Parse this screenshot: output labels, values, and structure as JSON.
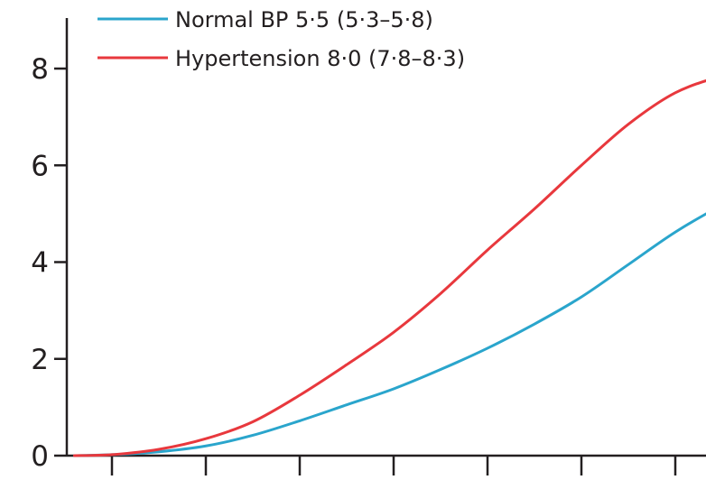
{
  "chart_data": {
    "type": "line",
    "title": "",
    "xlabel": "",
    "ylabel": "",
    "ylim": [
      0,
      9
    ],
    "xlim": [
      0,
      7
    ],
    "y_ticks": [
      0,
      2,
      4,
      6,
      8
    ],
    "y_tick_labels": [
      "0",
      "2",
      "4",
      "6",
      "8"
    ],
    "x_tick_count": 7,
    "grid": false,
    "legend_position": "top-left",
    "series": [
      {
        "name": "Normal BP 5·5 (5·3–5·8)",
        "color": "#2aa5cc",
        "x": [
          -0.4,
          0,
          0.5,
          1,
          1.5,
          2,
          2.5,
          3,
          3.5,
          4,
          4.5,
          5,
          5.5,
          6,
          6.5,
          6.85
        ],
        "y": [
          0,
          0.02,
          0.08,
          0.2,
          0.42,
          0.72,
          1.05,
          1.38,
          1.78,
          2.22,
          2.72,
          3.28,
          3.95,
          4.62,
          5.18,
          5.5
        ]
      },
      {
        "name": "Hypertension 8·0 (7·8–8·3)",
        "color": "#e8383d",
        "x": [
          -0.4,
          0,
          0.5,
          1,
          1.5,
          2,
          2.5,
          3,
          3.5,
          4,
          4.5,
          5,
          5.5,
          6,
          6.5,
          6.85
        ],
        "y": [
          0,
          0.02,
          0.13,
          0.35,
          0.7,
          1.25,
          1.88,
          2.55,
          3.35,
          4.25,
          5.1,
          6.0,
          6.85,
          7.5,
          7.85,
          8.0
        ]
      }
    ]
  }
}
